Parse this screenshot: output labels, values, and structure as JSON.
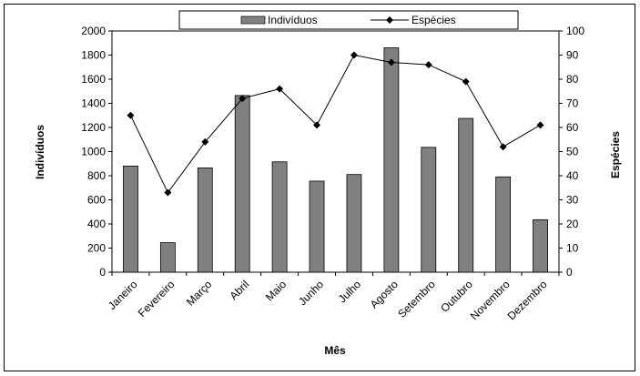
{
  "chart_data": {
    "type": "bar",
    "categories": [
      "Janeiro",
      "Fevereiro",
      "Março",
      "Abril",
      "Maio",
      "Junho",
      "Julho",
      "Agosto",
      "Setembro",
      "Outubro",
      "Novembro",
      "Dezembro"
    ],
    "series": [
      {
        "name": "Indivíduos",
        "type": "bar",
        "axis": "left",
        "color": "#808080",
        "values": [
          880,
          245,
          865,
          1465,
          915,
          755,
          810,
          1860,
          1035,
          1275,
          790,
          435
        ]
      },
      {
        "name": "Espécies",
        "type": "line",
        "axis": "right",
        "color": "#000000",
        "marker": "diamond",
        "values": [
          65,
          33,
          54,
          72,
          76,
          61,
          90,
          87,
          86,
          79,
          52,
          61
        ]
      }
    ],
    "title": "",
    "xlabel": "Mês",
    "ylabel": "Indivíduos",
    "y2label": "Espécies",
    "ylim": [
      0,
      2000
    ],
    "y2lim": [
      0,
      100
    ],
    "yticks": [
      "0",
      "200",
      "400",
      "600",
      "800",
      "1000",
      "1200",
      "1400",
      "1600",
      "1800",
      "2000"
    ],
    "y2ticks": [
      "0",
      "10",
      "20",
      "30",
      "40",
      "50",
      "60",
      "70",
      "80",
      "90",
      "100"
    ],
    "grid": false,
    "legend": "top-center"
  }
}
